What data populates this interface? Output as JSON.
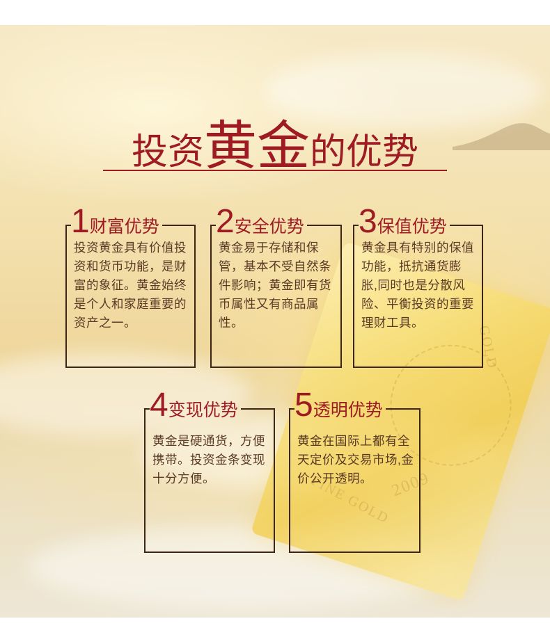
{
  "title": {
    "part1": "投资",
    "highlight": "黄金",
    "part2": "的优势"
  },
  "advantages": [
    {
      "number": "1",
      "heading": "财富优势",
      "text": "投资黄金具有价值投资和货币功能，是财富的象征。黄金始终是个人和家庭重要的资产之一。"
    },
    {
      "number": "2",
      "heading": "安全优势",
      "text": "黄金易于存储和保管，基本不受自然条件影响；黄金即有货币属性又有商品属性。"
    },
    {
      "number": "3",
      "heading": "保值优势",
      "text": "黄金具有特别的保值功能，抵抗通货膨胀,同时也是分散风险、平衡投资的重要理财工具。"
    },
    {
      "number": "4",
      "heading": "变现优势",
      "text": "黄金是硬通货，方便携带。投资金条变现十分方便。"
    },
    {
      "number": "5",
      "heading": "透明优势",
      "text": "黄金在国际上都有全天定价及交易市场,金价公开透明。"
    }
  ],
  "decoration": {
    "gold_bar_emboss": [
      "GOLD",
      "FINE GOLD",
      "2009"
    ],
    "accent_color": "#9e1b24",
    "border_color": "#3c2416"
  }
}
